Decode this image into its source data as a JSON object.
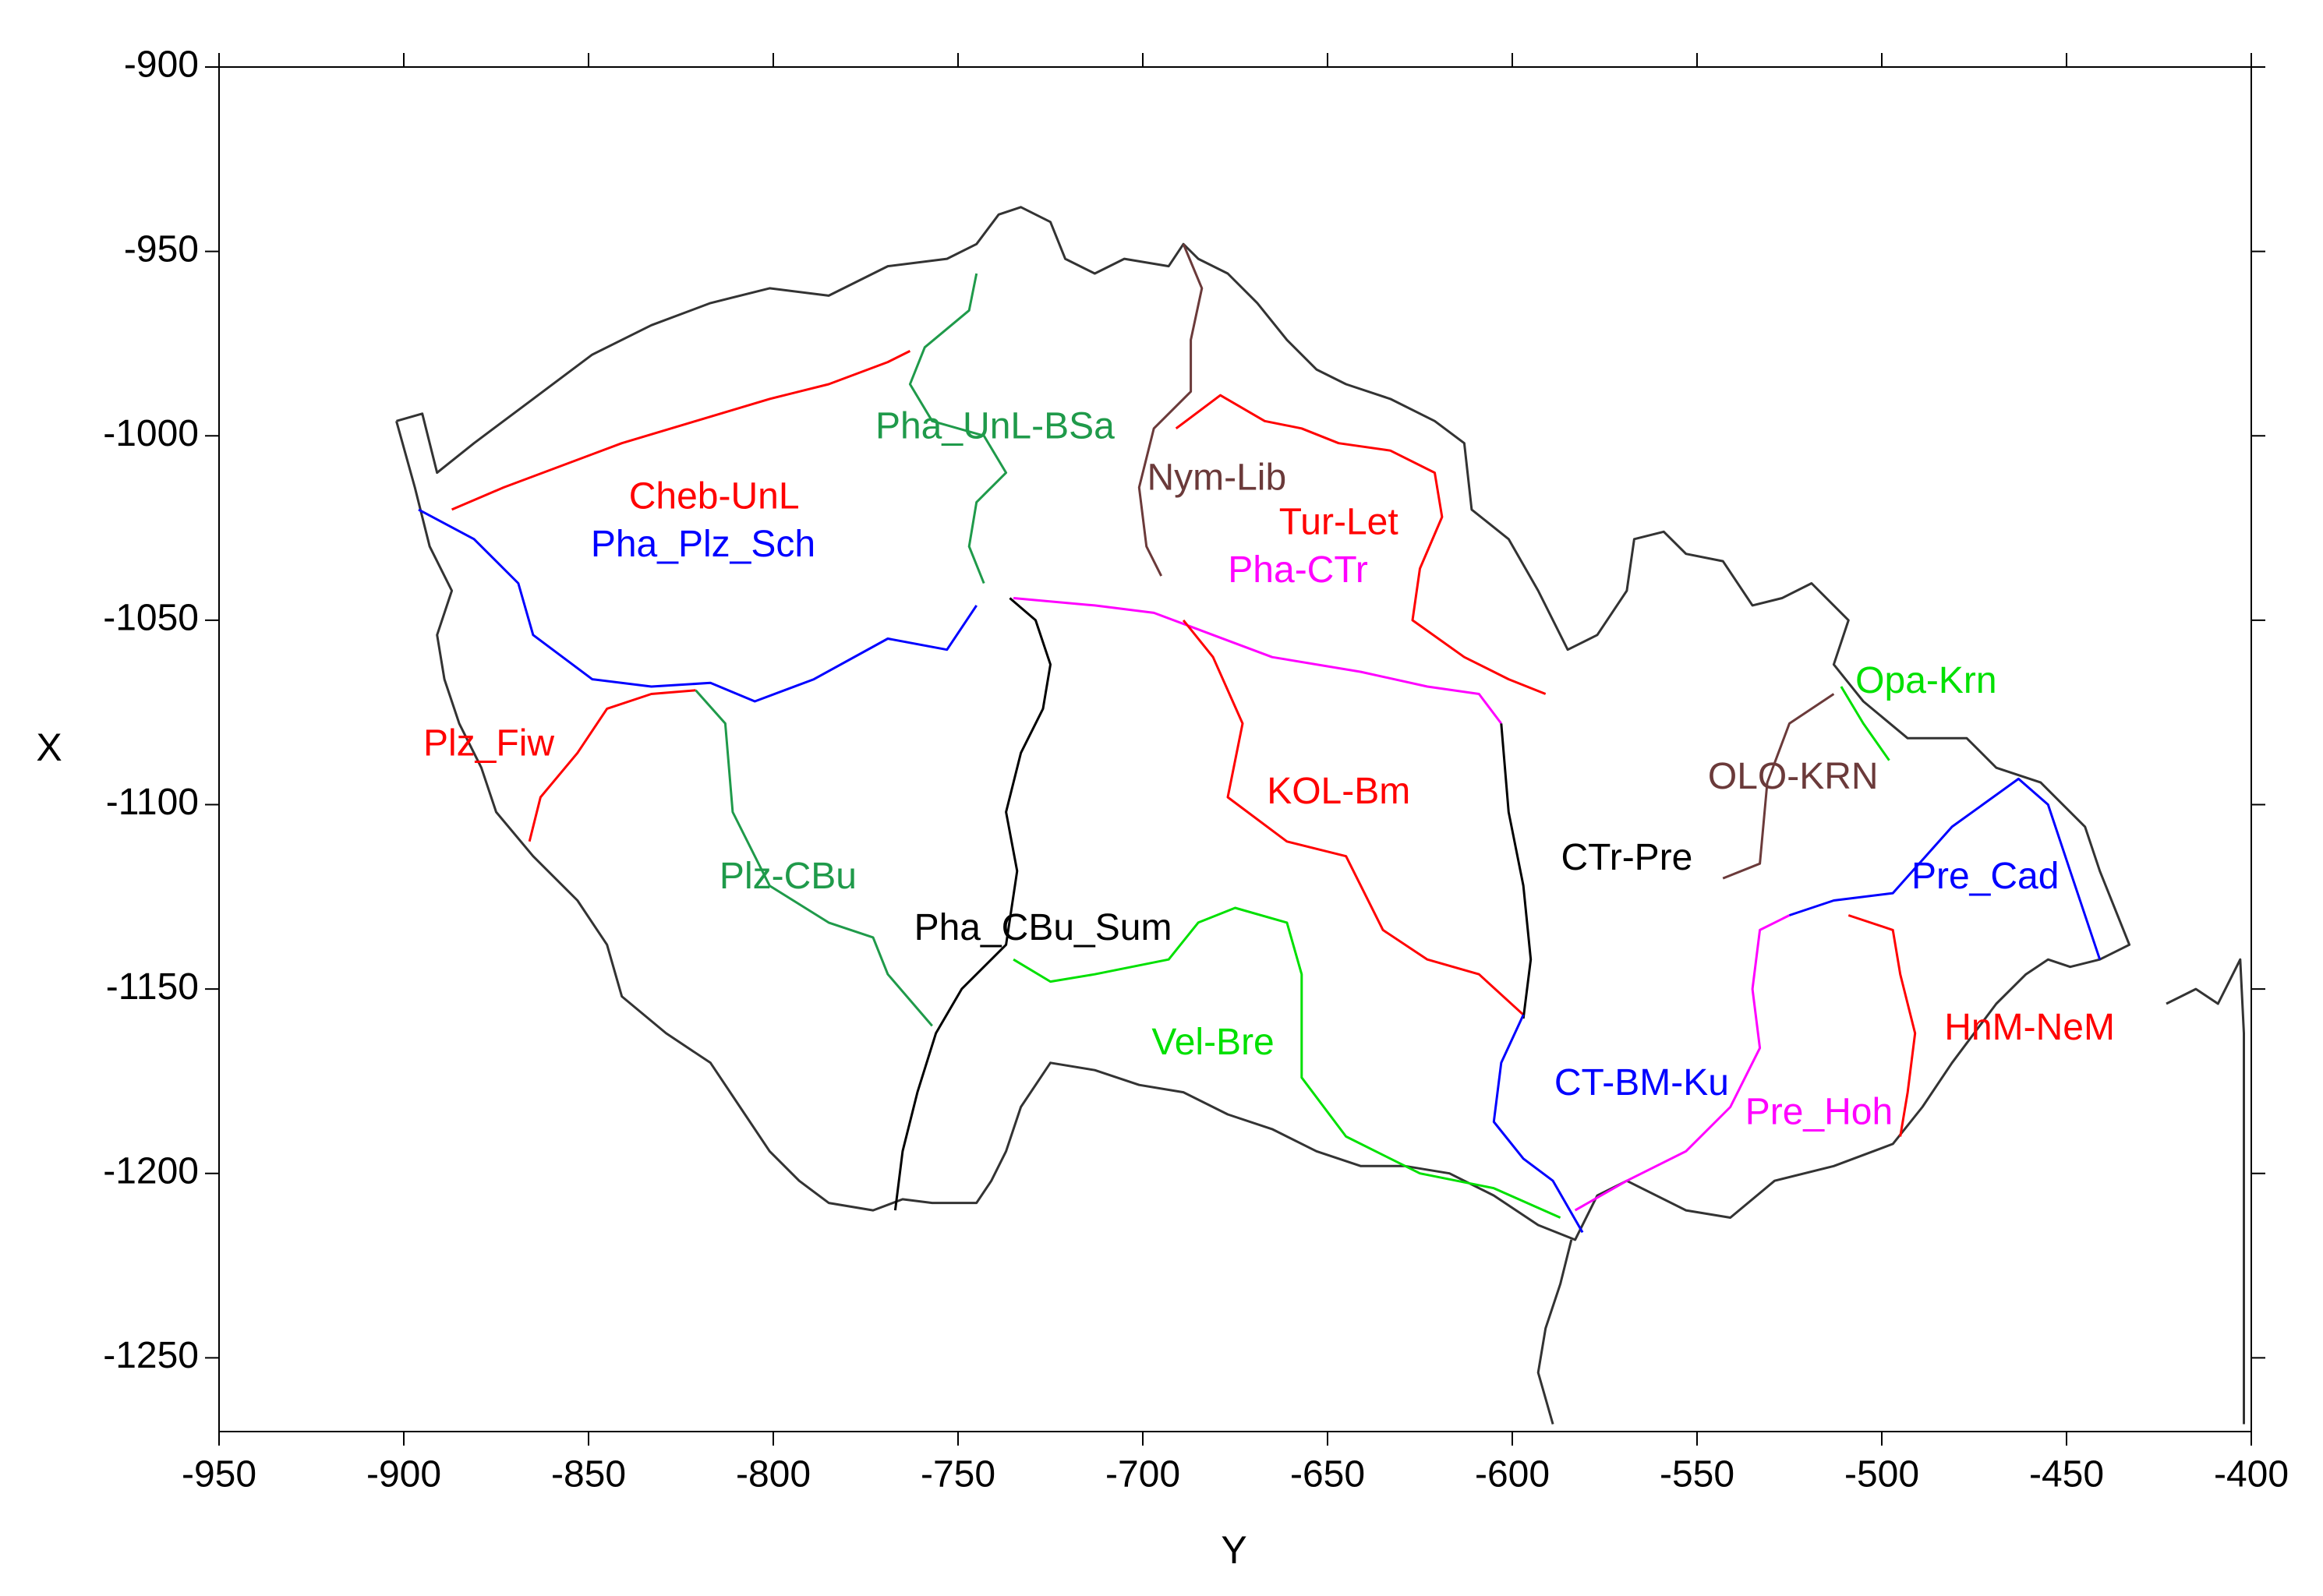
{
  "chart_data": {
    "type": "line",
    "xlabel": "Y",
    "ylabel": "X",
    "xlim": [
      -950,
      -400
    ],
    "ylim": [
      -1270,
      -900
    ],
    "xticks": [
      -950,
      -900,
      -850,
      -800,
      -750,
      -700,
      -650,
      -600,
      -550,
      -500,
      -450,
      -400
    ],
    "yticks": [
      -900,
      -950,
      -1000,
      -1050,
      -1100,
      -1150,
      -1200,
      -1250
    ],
    "series": [
      {
        "color": "#333333",
        "x": [
          -902,
          -895,
          -891,
          -881,
          -865,
          -849,
          -833,
          -817,
          -801,
          -785,
          -769,
          -753,
          -745,
          -739,
          -733,
          -725,
          -721,
          -713,
          -705,
          -693,
          -689,
          -685,
          -677,
          -669,
          -661,
          -653,
          -645,
          -633,
          -621,
          -613,
          -611,
          -601,
          -593,
          -585,
          -577,
          -569,
          -567,
          -559,
          -553,
          -543,
          -535,
          -527,
          -519,
          -509,
          -513,
          -505,
          -493,
          -477,
          -469,
          -457,
          -445,
          -441,
          -433,
          -441,
          -449,
          -455,
          -461,
          -469,
          -481,
          -489,
          -497,
          -513,
          -529,
          -541,
          -553,
          -569,
          -577,
          -583,
          -593,
          -605,
          -617,
          -629,
          -641,
          -653,
          -665,
          -677,
          -689,
          -701,
          -713,
          -725,
          -733,
          -737,
          -741,
          -745,
          -757,
          -765,
          -773,
          -785,
          -793,
          -801,
          -809,
          -817,
          -829,
          -841,
          -845,
          -853,
          -865,
          -875,
          -879,
          -885,
          -889,
          -891,
          -887,
          -893,
          -897,
          -902
        ],
        "values": [
          -996,
          -994,
          -1010,
          -1002,
          -990,
          -978,
          -970,
          -964,
          -960,
          -962,
          -954,
          -952,
          -948,
          -940,
          -938,
          -942,
          -952,
          -956,
          -952,
          -954,
          -948,
          -952,
          -956,
          -964,
          -974,
          -982,
          -986,
          -990,
          -996,
          -1002,
          -1020,
          -1028,
          -1042,
          -1058,
          -1054,
          -1042,
          -1028,
          -1026,
          -1032,
          -1034,
          -1046,
          -1044,
          -1040,
          -1050,
          -1062,
          -1072,
          -1082,
          -1082,
          -1090,
          -1094,
          -1106,
          -1118,
          -1138,
          -1142,
          -1144,
          -1142,
          -1146,
          -1154,
          -1170,
          -1182,
          -1192,
          -1198,
          -1202,
          -1212,
          -1210,
          -1202,
          -1206,
          -1218,
          -1214,
          -1206,
          -1200,
          -1198,
          -1198,
          -1194,
          -1188,
          -1184,
          -1178,
          -1176,
          -1172,
          -1170,
          -1182,
          -1194,
          -1202,
          -1208,
          -1208,
          -1207,
          -1210,
          -1208,
          -1202,
          -1194,
          -1182,
          -1170,
          -1162,
          -1152,
          -1138,
          -1126,
          -1114,
          -1102,
          -1090,
          -1078,
          -1066,
          -1054,
          -1042,
          -1030,
          -1014,
          -996
        ]
      },
      {
        "color": "#333333",
        "x": [
          -584,
          -587,
          -591,
          -593,
          -589
        ],
        "values": [
          -1218,
          -1230,
          -1242,
          -1254,
          -1268
        ]
      },
      {
        "color": "#333333",
        "x": [
          -423,
          -415,
          -409,
          -403,
          -402,
          -402
        ],
        "values": [
          -1154,
          -1150,
          -1154,
          -1142,
          -1162,
          -1268
        ]
      },
      {
        "name": "Cheb-UnL",
        "color": "#ff0000",
        "label_x": -816,
        "label_y": -1017,
        "x": [
          -887,
          -873,
          -857,
          -841,
          -821,
          -801,
          -785,
          -769,
          -763
        ],
        "values": [
          -1020,
          -1014,
          -1008,
          -1002,
          -996,
          -990,
          -986,
          -980,
          -977
        ]
      },
      {
        "name": "Pha_UnL-BSa",
        "color": "#1f9a4a",
        "label_x": -740,
        "label_y": -998,
        "x": [
          -745,
          -747,
          -759,
          -763,
          -757,
          -743,
          -737,
          -745,
          -747,
          -743
        ],
        "values": [
          -956,
          -966,
          -976,
          -986,
          -996,
          -1000,
          -1010,
          -1018,
          -1030,
          -1040
        ]
      },
      {
        "name": "Nym-Lib",
        "color": "#6b3a3a",
        "label_x": -680,
        "label_y": -1012,
        "x": [
          -689,
          -684,
          -687,
          -687,
          -697,
          -701,
          -699,
          -695
        ],
        "values": [
          -948,
          -960,
          -974,
          -988,
          -998,
          -1014,
          -1030,
          -1038
        ]
      },
      {
        "name": "Tur-Let",
        "color": "#ff0000",
        "label_x": -647,
        "label_y": -1024,
        "x": [
          -691,
          -679,
          -667,
          -657,
          -647,
          -633,
          -621,
          -619,
          -625,
          -627,
          -613,
          -601,
          -591
        ],
        "values": [
          -998,
          -989,
          -996,
          -998,
          -1002,
          -1004,
          -1010,
          -1022,
          -1036,
          -1050,
          -1060,
          -1066,
          -1070
        ]
      },
      {
        "name": "Pha_Plz_Sch",
        "color": "#0000ff",
        "label_x": -819,
        "label_y": -1030,
        "x": [
          -896,
          -881,
          -869,
          -865,
          -849,
          -833,
          -817,
          -805,
          -789,
          -769,
          -753,
          -745
        ],
        "values": [
          -1020,
          -1028,
          -1040,
          -1054,
          -1066,
          -1068,
          -1067,
          -1072,
          -1066,
          -1055,
          -1058,
          -1046
        ]
      },
      {
        "name": "Pha-CTr",
        "color": "#ff00ff",
        "label_x": -658,
        "label_y": -1037,
        "x": [
          -735,
          -713,
          -697,
          -681,
          -665,
          -641,
          -623,
          -609,
          -603
        ],
        "values": [
          -1044,
          -1046,
          -1048,
          -1054,
          -1060,
          -1064,
          -1068,
          -1070,
          -1078
        ]
      },
      {
        "name": "KOL-Bm",
        "color": "#ff0000",
        "label_x": -647,
        "label_y": -1097,
        "x": [
          -689,
          -681,
          -673,
          -677,
          -661,
          -645,
          -635,
          -623,
          -609,
          -597
        ],
        "values": [
          -1050,
          -1060,
          -1078,
          -1098,
          -1110,
          -1114,
          -1134,
          -1142,
          -1146,
          -1157
        ]
      },
      {
        "name": "Plz_Fiw",
        "color": "#ff0000",
        "label_x": -877,
        "label_y": -1084,
        "x": [
          -866,
          -863,
          -853,
          -845,
          -833,
          -821
        ],
        "values": [
          -1110,
          -1098,
          -1086,
          -1074,
          -1070,
          -1069
        ]
      },
      {
        "name": "Plz-CBu",
        "color": "#1f9a4a",
        "label_x": -796,
        "label_y": -1120,
        "x": [
          -821,
          -813,
          -811,
          -801,
          -785,
          -773,
          -769,
          -757
        ],
        "values": [
          -1069,
          -1078,
          -1102,
          -1122,
          -1132,
          -1136,
          -1146,
          -1160
        ]
      },
      {
        "name": "Pha_CBu_Sum",
        "color": "#000000",
        "label_x": -727,
        "label_y": -1134,
        "x": [
          -736,
          -729,
          -725,
          -727,
          -733,
          -737,
          -734,
          -737,
          -749,
          -756,
          -761,
          -765,
          -767
        ],
        "values": [
          -1044,
          -1050,
          -1062,
          -1074,
          -1086,
          -1102,
          -1118,
          -1138,
          -1150,
          -1162,
          -1178,
          -1194,
          -1210
        ]
      },
      {
        "name": "CTr-Pre",
        "color": "#000000",
        "label_x": -569,
        "label_y": -1115,
        "x": [
          -603,
          -601,
          -597,
          -595,
          -597
        ],
        "values": [
          -1078,
          -1102,
          -1122,
          -1142,
          -1158
        ]
      },
      {
        "name": "Vel-Bre",
        "color": "#00e000",
        "label_x": -681,
        "label_y": -1165,
        "x": [
          -735,
          -725,
          -713,
          -693,
          -685,
          -675,
          -661,
          -657,
          -657,
          -645,
          -625,
          -605,
          -587
        ],
        "values": [
          -1142,
          -1148,
          -1146,
          -1142,
          -1132,
          -1128,
          -1132,
          -1146,
          -1174,
          -1190,
          -1200,
          -1204,
          -1212
        ]
      },
      {
        "name": "CT-BM-Ku",
        "color": "#0000ff",
        "label_x": -565,
        "label_y": -1176,
        "x": [
          -597,
          -603,
          -605,
          -597,
          -589,
          -581
        ],
        "values": [
          -1157,
          -1170,
          -1186,
          -1196,
          -1202,
          -1216
        ]
      },
      {
        "name": "Pre_Hoh",
        "color": "#ff00ff",
        "label_x": -517,
        "label_y": -1184,
        "x": [
          -583,
          -569,
          -553,
          -541,
          -533,
          -535,
          -533,
          -525
        ],
        "values": [
          -1210,
          -1202,
          -1194,
          -1182,
          -1166,
          -1150,
          -1134,
          -1130
        ]
      },
      {
        "name": "Pre_Cad",
        "color": "#0000ff",
        "label_x": -472,
        "label_y": -1120,
        "x": [
          -525,
          -513,
          -497,
          -481,
          -463,
          -455,
          -449,
          -441
        ],
        "values": [
          -1130,
          -1126,
          -1124,
          -1106,
          -1093,
          -1100,
          -1118,
          -1142
        ]
      },
      {
        "name": "HnM-NeM",
        "color": "#ff0000",
        "label_x": -460,
        "label_y": -1161,
        "x": [
          -509,
          -497,
          -495,
          -491,
          -493,
          -495
        ],
        "values": [
          -1130,
          -1134,
          -1146,
          -1162,
          -1178,
          -1190
        ]
      },
      {
        "name": "OLO-KRN",
        "color": "#6b3a3a",
        "label_x": -524,
        "label_y": -1093,
        "x": [
          -543,
          -533,
          -531,
          -525,
          -513
        ],
        "values": [
          -1120,
          -1116,
          -1094,
          -1078,
          -1070
        ]
      },
      {
        "name": "Opa-Krn",
        "color": "#00e000",
        "label_x": -488,
        "label_y": -1067,
        "x": [
          -511,
          -505,
          -498
        ],
        "values": [
          -1068,
          -1078,
          -1088
        ]
      }
    ]
  }
}
